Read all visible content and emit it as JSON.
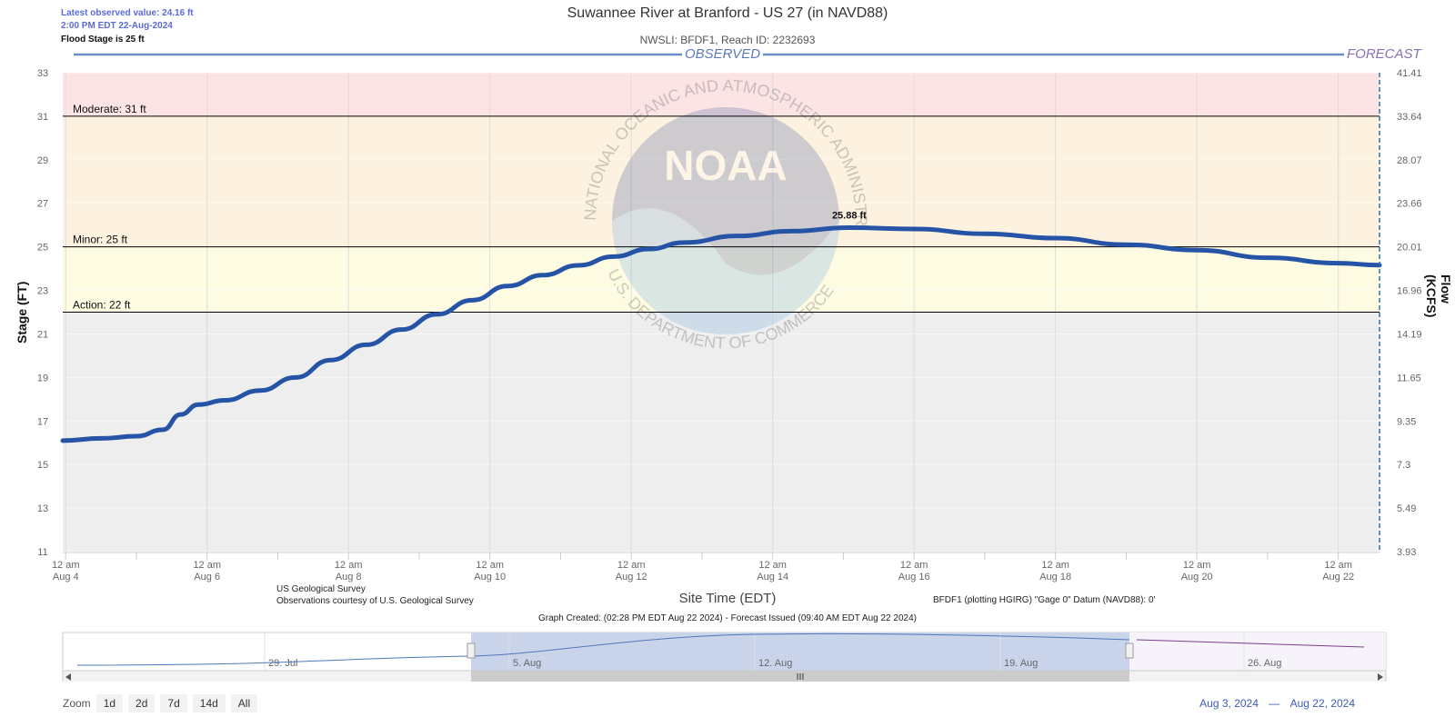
{
  "header": {
    "latest_line1": "Latest observed value: 24.16 ft",
    "latest_line2": "2:00 PM EDT 22-Aug-2024",
    "flood_stage": "Flood Stage is 25 ft",
    "title": "Suwannee River at Branford - US 27 (in NAVD88)",
    "subtitle": "NWSLI: BFDF1, Reach ID: 2232693",
    "observed_label": "OBSERVED",
    "forecast_label": "FORECAST"
  },
  "footer": {
    "source_line1": "US Geological Survey",
    "source_line2": "Observations courtesy of U.S. Geological Survey",
    "datum": "BFDF1 (plotting HGIRG) \"Gage 0\" Datum (NAVD88): 0'",
    "created": "Graph Created: (02:28 PM EDT Aug 22 2024) - Forecast Issued (09:40 AM EDT Aug 22 2024)"
  },
  "watermark": {
    "logo_text": "NOAA",
    "agency": "NATIONAL OCEANIC AND ATMOSPHERIC ADMINISTRATION",
    "dept": "U.S. DEPARTMENT OF COMMERCE"
  },
  "navigator": {
    "labels": [
      "29. Jul",
      "5. Aug",
      "12. Aug",
      "19. Aug",
      "26. Aug"
    ],
    "zoom_label": "Zoom",
    "zoom_buttons": [
      "1d",
      "2d",
      "7d",
      "14d",
      "All"
    ],
    "range_from": "Aug 3, 2024",
    "range_sep": "—",
    "range_to": "Aug 22, 2024"
  },
  "colors": {
    "line": "#2554a6",
    "moderate": "#fde4e4",
    "minor": "#fdf1e0",
    "action": "#fdfbe2",
    "normal": "#eeeeee",
    "forecast_divider": "#2a6fc4",
    "navigator_selected": "#c9d3ea"
  },
  "chart_data": {
    "type": "line",
    "title": "Suwannee River at Branford - US 27 (in NAVD88)",
    "xlabel": "Site Time (EDT)",
    "ylabel": "Stage (FT)",
    "y2label": "Flow (KCFS)",
    "ylim": [
      11,
      33
    ],
    "x_range": [
      "2024-08-03T23:00",
      "2024-08-22T14:00"
    ],
    "yticks": [
      11,
      13,
      15,
      17,
      19,
      21,
      23,
      25,
      27,
      29,
      31,
      33
    ],
    "y2ticks": [
      "3.93",
      "5.49",
      "7.3",
      "9.35",
      "11.65",
      "14.19",
      "16.96",
      "20.01",
      "23.66",
      "28.07",
      "33.64",
      "41.41"
    ],
    "xticks": [
      {
        "x": "2024-08-04T00:00",
        "l1": "12 am",
        "l2": "Aug 4"
      },
      {
        "x": "2024-08-06T00:00",
        "l1": "12 am",
        "l2": "Aug 6"
      },
      {
        "x": "2024-08-08T00:00",
        "l1": "12 am",
        "l2": "Aug 8"
      },
      {
        "x": "2024-08-10T00:00",
        "l1": "12 am",
        "l2": "Aug 10"
      },
      {
        "x": "2024-08-12T00:00",
        "l1": "12 am",
        "l2": "Aug 12"
      },
      {
        "x": "2024-08-14T00:00",
        "l1": "12 am",
        "l2": "Aug 14"
      },
      {
        "x": "2024-08-16T00:00",
        "l1": "12 am",
        "l2": "Aug 16"
      },
      {
        "x": "2024-08-18T00:00",
        "l1": "12 am",
        "l2": "Aug 18"
      },
      {
        "x": "2024-08-20T00:00",
        "l1": "12 am",
        "l2": "Aug 20"
      },
      {
        "x": "2024-08-22T00:00",
        "l1": "12 am",
        "l2": "Aug 22"
      }
    ],
    "thresholds": [
      {
        "label": "Moderate: 31 ft",
        "value": 31
      },
      {
        "label": "Minor: 25 ft",
        "value": 25
      },
      {
        "label": "Action: 22 ft",
        "value": 22
      }
    ],
    "peak": {
      "x": "2024-08-15T02:00",
      "value": 25.88,
      "label": "25.88 ft"
    },
    "series": [
      {
        "points": [
          [
            "2024-08-03T23:00",
            16.1
          ],
          [
            "2024-08-04T12:00",
            16.2
          ],
          [
            "2024-08-05T00:00",
            16.3
          ],
          [
            "2024-08-05T09:00",
            16.6
          ],
          [
            "2024-08-05T15:00",
            17.3
          ],
          [
            "2024-08-05T21:00",
            17.75
          ],
          [
            "2024-08-06T06:00",
            17.95
          ],
          [
            "2024-08-06T18:00",
            18.4
          ],
          [
            "2024-08-07T06:00",
            19.0
          ],
          [
            "2024-08-07T18:00",
            19.8
          ],
          [
            "2024-08-08T06:00",
            20.5
          ],
          [
            "2024-08-08T18:00",
            21.2
          ],
          [
            "2024-08-09T06:00",
            21.9
          ],
          [
            "2024-08-09T18:00",
            22.55
          ],
          [
            "2024-08-10T06:00",
            23.2
          ],
          [
            "2024-08-10T18:00",
            23.7
          ],
          [
            "2024-08-11T06:00",
            24.15
          ],
          [
            "2024-08-11T18:00",
            24.55
          ],
          [
            "2024-08-12T06:00",
            24.9
          ],
          [
            "2024-08-12T18:00",
            25.2
          ],
          [
            "2024-08-13T12:00",
            25.5
          ],
          [
            "2024-08-14T06:00",
            25.72
          ],
          [
            "2024-08-15T02:00",
            25.88
          ],
          [
            "2024-08-16T00:00",
            25.82
          ],
          [
            "2024-08-17T00:00",
            25.6
          ],
          [
            "2024-08-18T00:00",
            25.4
          ],
          [
            "2024-08-19T00:00",
            25.1
          ],
          [
            "2024-08-20T00:00",
            24.85
          ],
          [
            "2024-08-21T00:00",
            24.5
          ],
          [
            "2024-08-22T00:00",
            24.25
          ],
          [
            "2024-08-22T14:00",
            24.16
          ]
        ]
      }
    ]
  }
}
